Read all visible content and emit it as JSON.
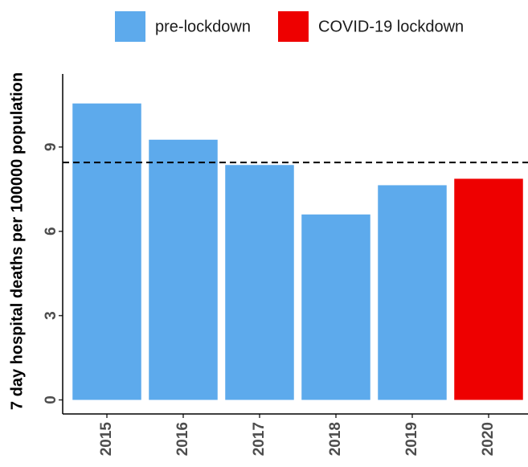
{
  "chart_data": {
    "type": "bar",
    "y_label": "7 day hospital deaths per 100000 population",
    "categories": [
      "2015",
      "2016",
      "2017",
      "2018",
      "2019",
      "2020"
    ],
    "series": [
      {
        "name": "pre-lockdown",
        "color": "#5DAAEC",
        "values": [
          10.55,
          9.26,
          8.36,
          6.6,
          7.64,
          null
        ]
      },
      {
        "name": "COVID-19 lockdown",
        "color": "#EE0000",
        "values": [
          null,
          null,
          null,
          null,
          null,
          7.87
        ]
      }
    ],
    "reference_line": 8.45,
    "ylim": [
      -0.5,
      11.6
    ],
    "yticks": [
      0,
      3,
      6,
      9
    ],
    "legend_position": "top"
  }
}
